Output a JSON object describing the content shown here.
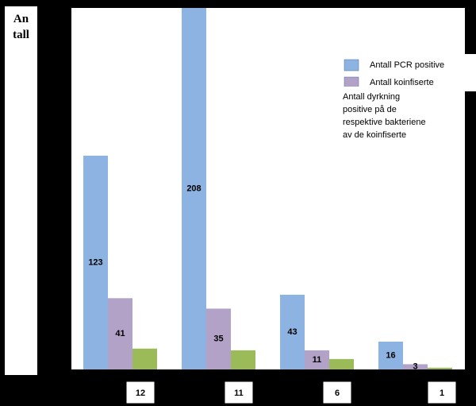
{
  "chart_data": {
    "type": "bar",
    "y_label": "An tall",
    "categories": [
      null,
      null,
      null,
      null
    ],
    "series": [
      {
        "name": "Antall PCR positive",
        "color": "#8db3e2",
        "values": [
          123,
          208,
          43,
          16
        ]
      },
      {
        "name": "Antall koinfiserte",
        "color": "#b3a2c7",
        "values": [
          41,
          35,
          11,
          3
        ]
      },
      {
        "name": "Antall dyrkning positive på de respektive bakteriene av de koinfiserte",
        "color": "#9bbb59",
        "values": [
          12,
          11,
          6,
          1
        ]
      }
    ],
    "ylim": [
      0,
      208
    ],
    "grid": false
  }
}
